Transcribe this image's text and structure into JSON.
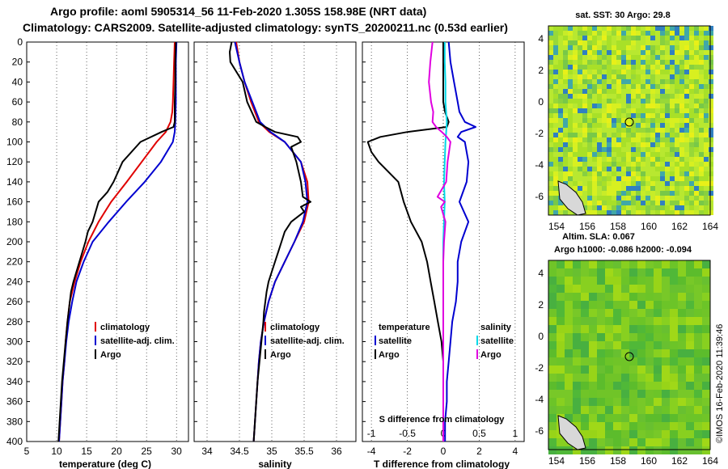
{
  "title_line1": "Argo profile: aoml 5905314_56 11-Feb-2020 1.305S 158.98E (NRT data)",
  "title_line2": "Climatology: CARS2009. Satellite-adjusted climatology: synTS_20200211.nc (0.53d earlier)",
  "colors": {
    "climatology": "#e00000",
    "satellite": "#0000d0",
    "argo": "#000000",
    "sal_diff": "#e000e0",
    "sal_sat": "#00d8e8"
  },
  "chart_data": [
    {
      "type": "line",
      "xlabel": "temperature (deg C)",
      "ylabel": "",
      "xlim": [
        5,
        32
      ],
      "ylim": [
        400,
        0
      ],
      "xticks": [
        "5",
        "10",
        "15",
        "20",
        "25",
        "30"
      ],
      "yticks": [
        "0",
        "20",
        "40",
        "60",
        "80",
        "100",
        "120",
        "140",
        "160",
        "180",
        "200",
        "220",
        "240",
        "260",
        "280",
        "300",
        "320",
        "340",
        "360",
        "380",
        "400"
      ],
      "legend": [
        "climatology",
        "satellite-adj. clim.",
        "Argo"
      ],
      "series": [
        {
          "name": "climatology",
          "depth": [
            0,
            20,
            40,
            60,
            70,
            80,
            90,
            100,
            120,
            140,
            160,
            180,
            200,
            220,
            240,
            260,
            280,
            300,
            320,
            340,
            360,
            380,
            400
          ],
          "values": [
            29.7,
            29.6,
            29.5,
            29.4,
            29.3,
            29.0,
            28.2,
            26.7,
            24.2,
            21.7,
            19.1,
            17.0,
            15.3,
            14.0,
            13.0,
            12.2,
            11.8,
            11.5,
            11.3,
            11.0,
            10.8,
            10.6,
            10.4
          ]
        },
        {
          "name": "satellite-adj. clim.",
          "depth": [
            0,
            20,
            40,
            60,
            80,
            90,
            100,
            120,
            140,
            160,
            180,
            200,
            220,
            240,
            260,
            280,
            300,
            320,
            340,
            360,
            380,
            400
          ],
          "values": [
            30.0,
            29.9,
            29.9,
            29.9,
            29.8,
            29.7,
            29.4,
            27.4,
            24.7,
            21.6,
            18.7,
            16.0,
            14.5,
            13.3,
            12.6,
            12.0,
            11.6,
            11.3,
            11.0,
            10.8,
            10.6,
            10.4
          ]
        },
        {
          "name": "Argo",
          "depth": [
            0,
            20,
            40,
            60,
            80,
            85,
            90,
            100,
            120,
            140,
            150,
            160,
            170,
            180,
            190,
            200,
            210,
            220,
            230,
            240,
            250,
            260,
            280,
            300,
            320,
            340,
            360,
            380,
            400
          ],
          "values": [
            29.9,
            29.8,
            29.8,
            29.7,
            29.7,
            29.5,
            27.5,
            24.0,
            21.0,
            19.5,
            18.5,
            17.0,
            16.5,
            16.0,
            15.2,
            14.8,
            14.3,
            13.8,
            13.3,
            12.8,
            12.4,
            12.2,
            11.8,
            11.5,
            11.2,
            10.9,
            10.7,
            10.5,
            10.3
          ]
        }
      ]
    },
    {
      "type": "line",
      "xlabel": "salinity",
      "xlim": [
        33.8,
        36.3
      ],
      "ylim": [
        400,
        0
      ],
      "xticks": [
        "34",
        "34.5",
        "35",
        "35.5",
        "36"
      ],
      "legend": [
        "climatology",
        "satellite-adj. clim.",
        "Argo"
      ],
      "series": [
        {
          "name": "climatology",
          "depth": [
            0,
            20,
            40,
            60,
            80,
            90,
            100,
            120,
            140,
            160,
            180,
            200,
            220,
            240,
            260,
            280,
            300,
            320,
            340,
            360,
            380,
            400
          ],
          "values": [
            34.45,
            34.5,
            34.58,
            34.68,
            34.8,
            34.96,
            35.2,
            35.45,
            35.55,
            35.57,
            35.5,
            35.35,
            35.2,
            35.05,
            34.95,
            34.88,
            34.83,
            34.8,
            34.78,
            34.76,
            34.74,
            34.72
          ]
        },
        {
          "name": "satellite-adj. clim.",
          "depth": [
            0,
            20,
            40,
            60,
            80,
            90,
            100,
            120,
            140,
            160,
            180,
            200,
            220,
            240,
            260,
            280,
            300,
            320,
            340,
            360,
            380,
            400
          ],
          "values": [
            34.43,
            34.5,
            34.58,
            34.7,
            34.82,
            34.98,
            35.2,
            35.45,
            35.52,
            35.55,
            35.48,
            35.35,
            35.2,
            35.05,
            34.95,
            34.88,
            34.83,
            34.8,
            34.78,
            34.76,
            34.74,
            34.72
          ]
        },
        {
          "name": "Argo",
          "depth": [
            0,
            10,
            20,
            40,
            60,
            80,
            85,
            90,
            95,
            100,
            105,
            120,
            140,
            155,
            160,
            165,
            170,
            180,
            190,
            200,
            210,
            220,
            230,
            240,
            250,
            260,
            270,
            280,
            300,
            320,
            340,
            360,
            380,
            400
          ],
          "values": [
            34.38,
            34.35,
            34.36,
            34.55,
            34.62,
            34.76,
            34.9,
            35.05,
            35.4,
            35.45,
            35.3,
            35.38,
            35.45,
            35.48,
            35.6,
            35.45,
            35.5,
            35.3,
            35.2,
            35.15,
            35.1,
            35.05,
            35.0,
            34.95,
            34.92,
            34.9,
            34.88,
            34.87,
            34.84,
            34.81,
            34.78,
            34.76,
            34.74,
            34.72
          ]
        }
      ]
    },
    {
      "type": "line",
      "xlabel": "T difference from climatology",
      "secondary_xlabel": "S difference from climatology",
      "xlim": [
        -4.5,
        4.5
      ],
      "ylim": [
        400,
        0
      ],
      "xticks": [
        "-4",
        "-2",
        "0",
        "2",
        "4"
      ],
      "secondary_xticks": [
        "-1",
        "-0.5",
        "0",
        "0.5",
        "1"
      ],
      "legend_temperature_title": "temperature",
      "legend_salinity_title": "salinity",
      "legend_labels": [
        "satellite",
        "Argo",
        "satellite",
        "Argo"
      ],
      "series": [
        {
          "name": "temperature satellite",
          "depth": [
            0,
            20,
            40,
            60,
            70,
            80,
            85,
            90,
            95,
            100,
            110,
            120,
            140,
            160,
            180,
            200,
            220,
            240,
            260,
            280,
            300,
            320,
            340,
            360,
            380,
            400
          ],
          "values": [
            0.3,
            0.4,
            0.6,
            0.8,
            0.9,
            1.2,
            1.8,
            1.0,
            0.8,
            1.2,
            1.3,
            1.4,
            1.3,
            0.9,
            1.4,
            1.0,
            0.8,
            0.8,
            0.7,
            0.5,
            0.4,
            0.3,
            0.2,
            0.2,
            0.1,
            0.1
          ]
        },
        {
          "name": "temperature Argo",
          "depth": [
            0,
            20,
            40,
            60,
            70,
            80,
            85,
            90,
            95,
            100,
            110,
            120,
            140,
            160,
            180,
            200,
            220,
            240,
            260,
            280,
            300,
            320,
            340,
            360,
            380,
            400
          ],
          "values": [
            0.0,
            0.0,
            0.0,
            0.0,
            0.1,
            0.3,
            0.2,
            -2.0,
            -3.5,
            -4.2,
            -4.0,
            -3.6,
            -2.5,
            -2.2,
            -1.8,
            -1.2,
            -0.9,
            -0.7,
            -0.5,
            -0.3,
            -0.1,
            0.0,
            0.0,
            0.0,
            0.0,
            0.0
          ]
        },
        {
          "name": "salinity satellite",
          "depth": [
            0,
            20,
            40,
            60,
            80,
            90,
            100,
            120,
            140,
            160,
            180,
            200,
            240,
            280,
            320,
            360,
            400
          ],
          "values": [
            0.02,
            0.02,
            0.03,
            0.03,
            0.05,
            0.04,
            0.03,
            0.02,
            0.01,
            0.02,
            0.01,
            0.0,
            0.0,
            0.0,
            0.0,
            0.0,
            0.0
          ]
        },
        {
          "name": "salinity Argo",
          "depth": [
            0,
            20,
            40,
            60,
            70,
            80,
            85,
            90,
            95,
            100,
            110,
            120,
            140,
            155,
            160,
            165,
            180,
            200,
            220,
            240,
            260,
            280,
            300,
            320,
            340,
            360,
            380,
            400
          ],
          "values": [
            -0.15,
            -0.18,
            -0.2,
            -0.17,
            -0.14,
            -0.15,
            -0.1,
            -0.02,
            0.05,
            0.1,
            0.08,
            0.06,
            0.04,
            -0.08,
            0.02,
            -0.03,
            0.03,
            0.01,
            0.0,
            0.0,
            0.0,
            0.0,
            0.0,
            0.0,
            0.0,
            0.0,
            0.0,
            0.0
          ]
        }
      ]
    }
  ],
  "map1": {
    "title": "sat. SST: 30 Argo: 29.8",
    "xticks": [
      "154",
      "156",
      "158",
      "160",
      "162",
      "164"
    ],
    "yticks": [
      "4",
      "2",
      "0",
      "-2",
      "-4",
      "-6"
    ]
  },
  "map2": {
    "title_line1": "Altim. SLA: 0.067",
    "title_line2": "Argo h1000: -0.086 h2000: -0.094",
    "xticks": [
      "154",
      "156",
      "158",
      "160",
      "162",
      "164"
    ],
    "yticks": [
      "4",
      "2",
      "0",
      "-2",
      "-4",
      "-6"
    ]
  },
  "credit": "©IMOS 16-Feb-2020 11:39:46"
}
